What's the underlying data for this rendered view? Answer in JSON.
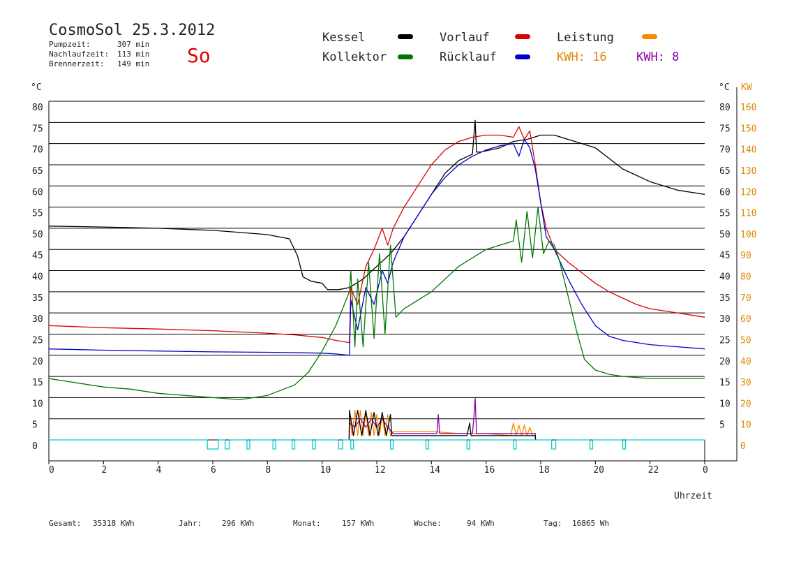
{
  "header": {
    "title": "CosmoSol 25.3.2012",
    "day": "So",
    "stats": [
      {
        "label": "Pumpzeit:",
        "value": "307 min"
      },
      {
        "label": "Nachlaufzeit:",
        "value": "113 min"
      },
      {
        "label": "Brennerzeit:",
        "value": "149 min"
      }
    ]
  },
  "legend": [
    {
      "label": "Kessel",
      "color": "#000000"
    },
    {
      "label": "Vorlauf",
      "color": "#dd0000"
    },
    {
      "label": "Leistung",
      "color": "#ff8800"
    },
    {
      "label": "Kollektor",
      "color": "#007700"
    },
    {
      "label": "Rücklauf",
      "color": "#0000cc"
    },
    {
      "label": "KWH: 16",
      "color": "#ff8800",
      "text_color": "#dd8800"
    },
    {
      "label": "KWH: 8",
      "color": "#8800aa",
      "text_color": "#8800aa"
    }
  ],
  "footer": [
    {
      "label": "Gesamt:",
      "value": "35318 KWh"
    },
    {
      "label": "Jahr:",
      "value": "296 KWh"
    },
    {
      "label": "Monat:",
      "value": "157 KWh"
    },
    {
      "label": "Woche:",
      "value": "94 KWh"
    },
    {
      "label": "Tag:",
      "value": "16865 Wh"
    }
  ],
  "chart_data": {
    "type": "line",
    "title": "CosmoSol 25.3.2012",
    "xlabel": "Uhrzeit",
    "ylabel_left": "°C",
    "ylabel_right_1": "°C",
    "ylabel_right_2": "KW",
    "xlim": [
      0,
      24
    ],
    "ylim": [
      0,
      80
    ],
    "y2lim": [
      0,
      160
    ],
    "x_ticks": [
      "0",
      "2",
      "4",
      "6",
      "8",
      "10",
      "12",
      "14",
      "16",
      "18",
      "20",
      "22",
      "0"
    ],
    "y_ticks": [
      "0",
      "5",
      "10",
      "15",
      "20",
      "25",
      "30",
      "35",
      "40",
      "45",
      "50",
      "55",
      "60",
      "65",
      "70",
      "75",
      "80"
    ],
    "y_right_ticks": [
      "5",
      "10",
      "15",
      "20",
      "25",
      "30",
      "35",
      "40",
      "45",
      "50",
      "55",
      "60",
      "65",
      "70",
      "75",
      "80"
    ],
    "y2_ticks": [
      "0",
      "10",
      "20",
      "30",
      "40",
      "50",
      "60",
      "70",
      "80",
      "90",
      "100",
      "110",
      "120",
      "130",
      "140",
      "150",
      "160"
    ],
    "grid": true,
    "series": [
      {
        "name": "Kessel",
        "color": "#000000",
        "x": [
          0,
          2,
          4,
          6,
          7,
          8,
          8.8,
          9.1,
          9.3,
          9.6,
          10,
          10.2,
          10.6,
          11,
          11.5,
          12,
          12.5,
          13,
          13.5,
          14,
          14.5,
          15,
          15.5,
          15.6,
          15.65,
          15.8,
          16.5,
          17,
          17.5,
          18,
          18.5,
          19,
          19.5,
          20,
          21,
          22,
          23,
          24
        ],
        "y": [
          50.5,
          50.3,
          50.0,
          49.5,
          49.0,
          48.5,
          47.5,
          43.5,
          38.5,
          37.5,
          37.0,
          35.5,
          35.5,
          36,
          38,
          41,
          44,
          48,
          53,
          58,
          63,
          66,
          67.5,
          75.5,
          68,
          68,
          69,
          70.5,
          71,
          72,
          72,
          71,
          70,
          69,
          64,
          61,
          59,
          58
        ]
      },
      {
        "name": "Vorlauf",
        "color": "#dd0000",
        "x": [
          0,
          2,
          4,
          6,
          7,
          8,
          9,
          10,
          10.5,
          11,
          11.05,
          11.3,
          11.6,
          11.9,
          12.2,
          12.4,
          12.6,
          13,
          13.5,
          14,
          14.5,
          15,
          15.5,
          16,
          16.5,
          17,
          17.2,
          17.4,
          17.6,
          17.8,
          18,
          18.2,
          18.5,
          19,
          19.5,
          20,
          20.5,
          21,
          21.5,
          22,
          22.5,
          23,
          23.5,
          24
        ],
        "y": [
          27,
          26.5,
          26.2,
          25.8,
          25.5,
          25.2,
          24.8,
          24.2,
          23.5,
          23,
          36,
          32,
          41,
          45,
          50,
          46,
          50,
          55,
          60,
          65,
          68.5,
          70.5,
          71.5,
          72,
          72,
          71.5,
          74,
          71,
          73,
          65,
          56,
          50,
          45,
          42,
          39.5,
          37,
          35,
          33.5,
          32,
          31,
          30.5,
          30,
          29.5,
          29
        ]
      },
      {
        "name": "Rücklauf",
        "color": "#0000cc",
        "x": [
          0,
          2,
          4,
          6,
          8,
          10,
          10.5,
          11,
          11.05,
          11.3,
          11.6,
          11.9,
          12.2,
          12.4,
          12.6,
          13,
          13.5,
          14,
          14.5,
          15,
          15.5,
          16,
          16.5,
          17,
          17.2,
          17.4,
          17.6,
          17.8,
          18,
          18.2,
          18.5,
          19,
          19.5,
          20,
          20.5,
          21,
          22,
          23,
          24
        ],
        "y": [
          21.5,
          21.2,
          21,
          20.8,
          20.7,
          20.5,
          20.3,
          20,
          33,
          26,
          36,
          32,
          40,
          37,
          42,
          48,
          53,
          58,
          62,
          65,
          67,
          68.5,
          69.5,
          70,
          67,
          71,
          69,
          64,
          56,
          48,
          45,
          38,
          32,
          27,
          24.5,
          23.5,
          22.5,
          22,
          21.5
        ]
      },
      {
        "name": "Kollektor",
        "color": "#007700",
        "x": [
          0,
          1,
          2,
          3,
          4,
          5,
          6,
          7,
          8,
          9,
          9.5,
          10,
          10.5,
          11,
          11.05,
          11.2,
          11.3,
          11.5,
          11.7,
          11.9,
          12.1,
          12.3,
          12.5,
          12.7,
          13,
          13.5,
          14,
          14.5,
          15,
          15.5,
          16,
          16.5,
          17,
          17.1,
          17.3,
          17.5,
          17.7,
          17.9,
          18.1,
          18.3,
          18.5,
          18.7,
          19,
          19.3,
          19.6,
          20,
          20.5,
          21,
          22,
          23,
          24
        ],
        "y": [
          14.5,
          13.5,
          12.5,
          12,
          11.0,
          10.5,
          10,
          9.5,
          10.5,
          13,
          16,
          21,
          27,
          35,
          40,
          22,
          38,
          22,
          42,
          24,
          44,
          25,
          46,
          29,
          31,
          33,
          35,
          38,
          41,
          43,
          45,
          46,
          47,
          52,
          42,
          54,
          43,
          55,
          44,
          47,
          46,
          42,
          34,
          26,
          19,
          16.5,
          15.5,
          15,
          14.5,
          14.5,
          14.5
        ]
      },
      {
        "name": "Leistung",
        "color": "#ff8800",
        "x": [
          10.99,
          11,
          11.1,
          11.2,
          11.3,
          11.4,
          11.5,
          11.6,
          11.7,
          11.8,
          11.9,
          12,
          12.1,
          12.2,
          12.3,
          12.4,
          12.5,
          12.6,
          13,
          14,
          15,
          16,
          16.9,
          17,
          17.1,
          17.2,
          17.3,
          17.4,
          17.5,
          17.6,
          17.7,
          17.8,
          17.81
        ],
        "y": [
          0,
          6,
          1,
          7,
          1,
          7,
          1,
          6.5,
          1,
          6.5,
          1,
          6,
          1,
          6,
          1,
          6,
          1,
          2,
          2,
          2,
          1.5,
          1.5,
          1,
          4,
          1,
          3.5,
          1,
          3.5,
          1,
          3,
          1,
          1,
          0
        ]
      },
      {
        "name": "KWH: 8",
        "color": "#8800aa",
        "x": [
          10.99,
          11,
          11.2,
          11.4,
          11.6,
          11.8,
          12,
          12.2,
          12.4,
          12.6,
          13,
          14,
          14.2,
          14.25,
          14.3,
          15,
          15.5,
          15.55,
          15.6,
          15.65,
          16,
          17,
          17.5,
          17.8,
          17.81
        ],
        "y": [
          0,
          4,
          3,
          5,
          3,
          5,
          3,
          5,
          3,
          1.5,
          1.5,
          1.5,
          1.5,
          6,
          1.5,
          1.5,
          1.5,
          5,
          10,
          1.5,
          1.5,
          1.5,
          1.5,
          1.5,
          0
        ]
      },
      {
        "name": "Kessel-Leistung",
        "color": "#000000",
        "x": [
          10.99,
          11,
          11.15,
          11.3,
          11.45,
          11.6,
          11.75,
          11.9,
          12.05,
          12.2,
          12.35,
          12.5,
          12.55,
          13,
          14,
          15,
          15.3,
          15.4,
          15.45,
          15.5,
          16,
          17,
          17.5,
          17.8,
          17.81
        ],
        "y": [
          0,
          7,
          1,
          7,
          1,
          7,
          1,
          6.5,
          1,
          6.5,
          1,
          6,
          1,
          1,
          1,
          1,
          1,
          4,
          1,
          1,
          1,
          1,
          1,
          1,
          0
        ]
      },
      {
        "name": "Pumpe",
        "color": "#00cccc",
        "pulses": [
          [
            5.8,
            6.2
          ],
          [
            6.45,
            6.6
          ],
          [
            7.25,
            7.35
          ],
          [
            8.2,
            8.3
          ],
          [
            8.9,
            9.0
          ],
          [
            9.65,
            9.75
          ],
          [
            10.6,
            10.75
          ],
          [
            11.05,
            11.15
          ],
          [
            12.5,
            12.6
          ],
          [
            13.8,
            13.9
          ],
          [
            15.3,
            15.4
          ],
          [
            17.0,
            17.1
          ],
          [
            18.4,
            18.55
          ],
          [
            19.8,
            19.9
          ],
          [
            21.0,
            21.1
          ]
        ]
      }
    ]
  }
}
